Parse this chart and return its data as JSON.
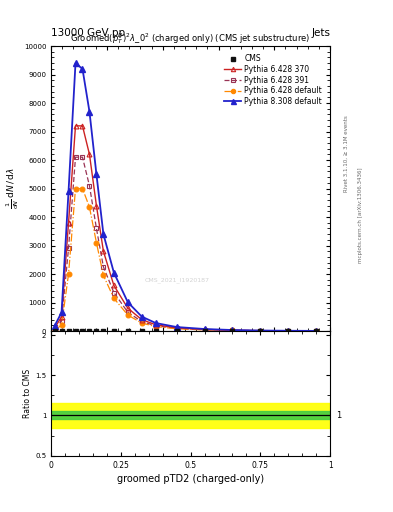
{
  "title_left": "13000 GeV pp",
  "title_right": "Jets",
  "plot_title": "Groomed$(p_T^D)^2\\lambda\\_0^2$ (charged only) (CMS jet substructure)",
  "xlabel": "groomed pTD2 (charged-only)",
  "watermark": "CMS_2021_I1920187",
  "right_label1": "Rivet 3.1.10, ≥ 3.1M events",
  "right_label2": "mcplots.cern.ch [arXiv:1306.3436]",
  "x_bins": [
    0.0,
    0.025,
    0.05,
    0.075,
    0.1,
    0.125,
    0.15,
    0.175,
    0.2,
    0.25,
    0.3,
    0.35,
    0.4,
    0.5,
    0.6,
    0.7,
    0.8,
    0.9,
    1.0
  ],
  "py6_370": [
    100,
    500,
    3800,
    7200,
    7200,
    6200,
    4400,
    2800,
    1600,
    800,
    400,
    220,
    110,
    55,
    28,
    14,
    7,
    3
  ],
  "py6_391": [
    80,
    350,
    2900,
    6100,
    6100,
    5100,
    3600,
    2250,
    1350,
    660,
    330,
    185,
    92,
    46,
    23,
    12,
    6,
    2
  ],
  "py6_def": [
    40,
    200,
    2000,
    5000,
    5000,
    4350,
    3100,
    1950,
    1150,
    560,
    280,
    155,
    78,
    39,
    20,
    10,
    5,
    2
  ],
  "py8_def": [
    180,
    650,
    4900,
    9400,
    9200,
    7700,
    5500,
    3400,
    2050,
    1010,
    505,
    280,
    140,
    70,
    35,
    17,
    9,
    4
  ],
  "cms_y": [
    0,
    0,
    0,
    0,
    0,
    0,
    0,
    0,
    0,
    0,
    0,
    0,
    0,
    0,
    0,
    0,
    0,
    0
  ],
  "color_py6_370": "#cc2222",
  "color_py6_391": "#993355",
  "color_py6_def": "#ff8800",
  "color_py8_def": "#2222cc",
  "color_cms": "#111111",
  "yticks": [
    0,
    1000,
    2000,
    3000,
    4000,
    5000,
    6000,
    7000,
    8000,
    9000,
    10000
  ],
  "ylim_main": [
    0,
    10000
  ],
  "ylim_ratio": [
    0.5,
    2.05
  ],
  "band_green": 0.05,
  "band_yellow": 0.15,
  "ratio_yticks": [
    0.5,
    1.0,
    1.5,
    2.0
  ],
  "ratio_yticklabels": [
    "0.5",
    "1",
    "1.5",
    "2"
  ]
}
